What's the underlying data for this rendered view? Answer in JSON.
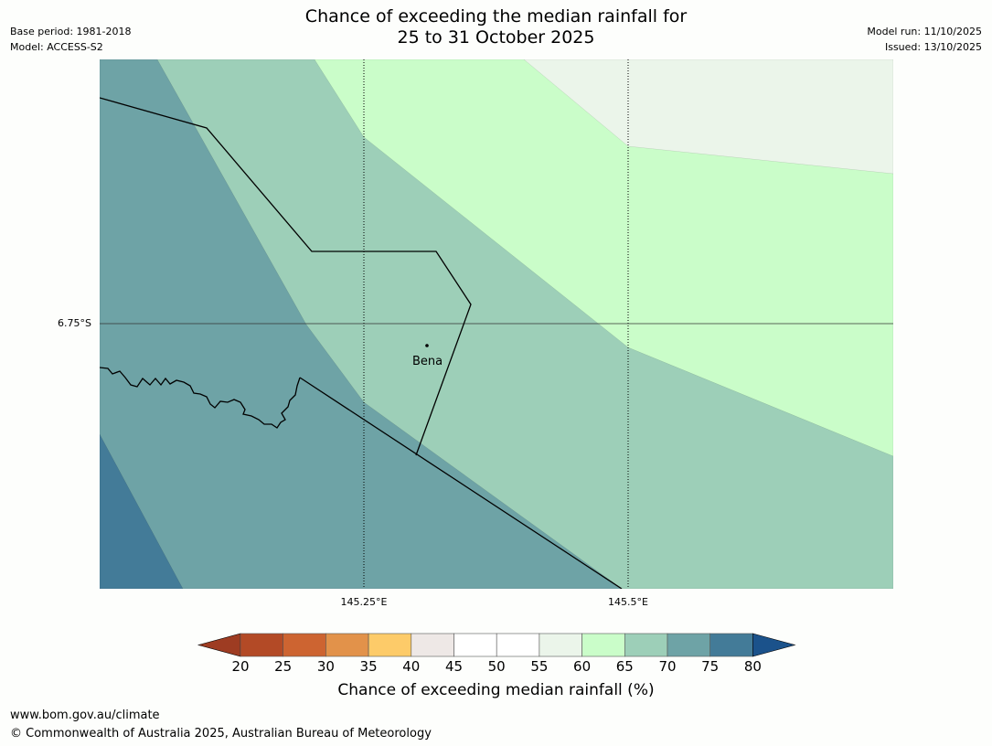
{
  "header": {
    "title_line1": "Chance of exceeding the median rainfall for",
    "title_line2": "25 to 31 October 2025",
    "base_period": "Base period: 1981-2018",
    "model": "Model: ACCESS-S2",
    "model_run": "Model run: 11/10/2025",
    "issued": "Issued: 13/10/2025"
  },
  "map": {
    "lat_label": "6.75°S",
    "lon_labels": [
      "145.25°E",
      "145.5°E"
    ],
    "town": "Bena",
    "zone_colors": {
      "c55_60": "#ebf5ea",
      "c60_65": "#cafdc9",
      "c65_70": "#9dcfb8",
      "c70_75": "#6ea3a6",
      "c75_80": "#437b98"
    }
  },
  "colorbar": {
    "ticks": [
      "20",
      "25",
      "30",
      "35",
      "40",
      "45",
      "50",
      "55",
      "60",
      "65",
      "70",
      "75",
      "80"
    ],
    "colors": [
      "#9e3c22",
      "#b34a26",
      "#cd6431",
      "#e2924a",
      "#fdcb69",
      "#eee8e6",
      "#ffffff",
      "#ffffff",
      "#ebf5ea",
      "#cafdc9",
      "#9dcfb8",
      "#6ea3a6",
      "#437b98",
      "#1b528b"
    ],
    "label": "Chance of exceeding median rainfall (%)"
  },
  "footer": {
    "url": "www.bom.gov.au/climate",
    "copyright": "© Commonwealth of Australia 2025, Australian Bureau of Meteorology"
  }
}
